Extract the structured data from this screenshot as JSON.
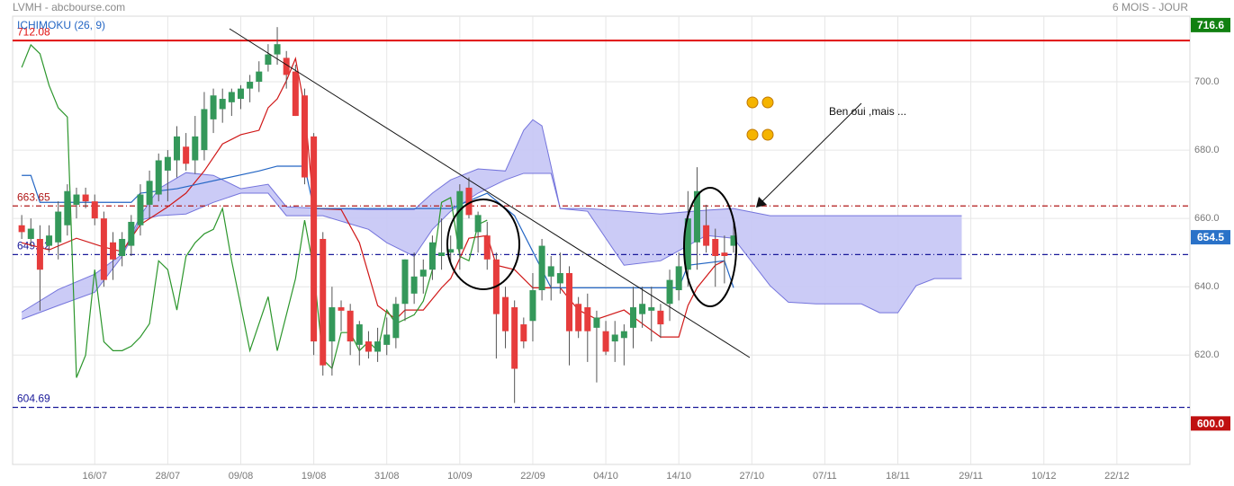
{
  "chart_data": {
    "type": "candlestick",
    "title": "LVMH - abcbourse.com",
    "subtitle": "6 MOIS - JOUR",
    "indicator": "ICHIMOKU (26, 9)",
    "annotation": "Ben oui ,mais ...",
    "up_color": "#34985a",
    "down_color": "#e63c3c",
    "x": [
      0,
      1,
      2,
      3,
      4,
      5,
      6,
      7,
      8,
      9,
      10,
      11,
      12,
      13,
      14,
      15,
      16,
      17,
      18,
      19,
      20,
      21,
      22,
      23,
      24,
      25,
      26,
      27,
      28,
      29,
      30,
      31,
      32,
      33,
      34,
      35,
      36,
      37,
      38,
      39,
      40,
      41,
      42,
      43,
      44,
      45,
      46,
      47,
      48,
      49,
      50,
      51,
      52,
      53,
      54,
      55,
      56,
      57,
      58,
      59,
      60,
      61,
      62,
      63,
      64,
      65,
      66,
      67,
      68,
      69,
      70,
      71,
      72,
      73,
      74,
      75,
      76,
      77,
      78
    ],
    "open": [
      658,
      654,
      654,
      652,
      653,
      658,
      664,
      667,
      665,
      660,
      653,
      649,
      652,
      658,
      664,
      667,
      674,
      677,
      681,
      677,
      680,
      689,
      692,
      694,
      695,
      698,
      700,
      705,
      708,
      707,
      703,
      696,
      684,
      654,
      624,
      634,
      633,
      623,
      624,
      621,
      623,
      625,
      635,
      638,
      643,
      645,
      649,
      650,
      651,
      669,
      656,
      655,
      648,
      637,
      634,
      629,
      630,
      639,
      643,
      641,
      644,
      635,
      634,
      628,
      627,
      624,
      625,
      628,
      632,
      633,
      633,
      635,
      639,
      645,
      653,
      658,
      654,
      650,
      652
    ],
    "high": [
      661,
      660,
      658,
      658,
      665,
      670,
      669,
      669,
      667,
      662,
      656,
      656,
      661,
      670,
      674,
      679,
      680,
      687,
      685,
      690,
      697,
      698,
      698,
      698,
      699,
      702,
      706,
      711,
      716,
      709,
      705,
      698,
      685,
      656,
      640,
      636,
      635,
      630,
      627,
      628,
      631,
      637,
      648,
      650,
      648,
      655,
      660,
      655,
      670,
      672,
      662,
      659,
      650,
      640,
      636,
      631,
      644,
      654,
      649,
      650,
      646,
      637,
      638,
      633,
      630,
      630,
      629,
      640,
      640,
      640,
      635,
      645,
      650,
      668,
      675,
      664,
      657,
      655,
      659
    ],
    "low": [
      654,
      652,
      633,
      650,
      648,
      655,
      660,
      663,
      658,
      640,
      642,
      646,
      649,
      655,
      660,
      665,
      665,
      672,
      674,
      673,
      677,
      685,
      688,
      690,
      692,
      694,
      697,
      703,
      705,
      698,
      690,
      670,
      620,
      614,
      614,
      627,
      620,
      617,
      619,
      618,
      620,
      622,
      630,
      635,
      638,
      642,
      645,
      647,
      645,
      660,
      650,
      645,
      619,
      622,
      606,
      622,
      624,
      636,
      636,
      638,
      617,
      625,
      618,
      612,
      620,
      618,
      617,
      622,
      628,
      624,
      625,
      630,
      636,
      640,
      645,
      650,
      640,
      641,
      650
    ],
    "close": [
      656,
      657,
      645,
      655,
      662,
      668,
      667,
      665,
      660,
      642,
      648,
      654,
      659,
      667,
      671,
      677,
      678,
      684,
      676,
      684,
      692,
      696,
      695,
      697,
      698,
      700,
      703,
      708,
      711,
      702,
      690,
      672,
      624,
      617,
      634,
      633,
      624,
      629,
      621,
      624,
      626,
      635,
      648,
      643,
      645,
      653,
      650,
      651,
      668,
      661,
      661,
      648,
      632,
      627,
      616,
      624,
      639,
      652,
      646,
      644,
      627,
      627,
      627,
      631,
      621,
      626,
      627,
      634,
      635,
      634,
      629,
      642,
      646,
      660,
      668,
      652,
      649,
      649,
      655
    ],
    "cloud": {
      "fill": "#c5c5f5",
      "edge": "#7474dc",
      "x": [
        0,
        4,
        8,
        11,
        13,
        15,
        18,
        21,
        24,
        27,
        29,
        33,
        38,
        40,
        43,
        45,
        47,
        50,
        53,
        55,
        56,
        57,
        58,
        59,
        62,
        66,
        70,
        75,
        78,
        82,
        84,
        87,
        92,
        94,
        96,
        98,
        100,
        103
      ],
      "upper": [
        632.6,
        639.2,
        643.7,
        649.5,
        660.8,
        668.7,
        673.4,
        672.6,
        668.7,
        670,
        663.4,
        662.9,
        662.6,
        662.6,
        662.6,
        667.4,
        671.3,
        674.5,
        673.9,
        685.8,
        688.9,
        687.1,
        675.3,
        662.9,
        662.9,
        662.1,
        661.3,
        662.4,
        662.9,
        660.8,
        660.8,
        660.8,
        660.8,
        660.8,
        660.8,
        660.8,
        660.8,
        660.8
      ],
      "lower": [
        630.5,
        634.5,
        638.4,
        648.9,
        659.5,
        660.8,
        661.3,
        664.7,
        667.4,
        667.4,
        660.8,
        660.8,
        656.8,
        652.9,
        648.9,
        656.8,
        662.1,
        667.4,
        671.3,
        673.2,
        673.2,
        673.2,
        673.2,
        662.9,
        662.1,
        646.3,
        647.6,
        655,
        654.2,
        640.3,
        635.5,
        635,
        635,
        632.4,
        632.4,
        640.3,
        642.4,
        642.4
      ]
    },
    "lines": [
      {
        "color": "#d01818",
        "x": [
          0,
          3,
          6,
          9,
          11,
          13,
          16,
          18,
          20,
          22,
          24,
          26,
          27,
          28,
          29,
          30,
          31,
          32,
          35,
          37,
          39,
          41,
          42,
          44,
          46,
          47,
          49,
          51,
          52,
          54,
          56,
          59,
          61,
          63,
          66,
          68,
          70,
          72,
          73,
          74,
          76,
          77
        ],
        "values": [
          652.9,
          650.8,
          654.2,
          651.6,
          650.3,
          658.2,
          663.4,
          667.4,
          673.9,
          681.8,
          684.5,
          685.8,
          692.4,
          695,
          700.3,
          706.8,
          692.4,
          662.9,
          662.6,
          652.9,
          634.5,
          630.5,
          633.2,
          633.2,
          639.7,
          642.4,
          654.2,
          655,
          646.3,
          645,
          639.7,
          639.7,
          633.2,
          630.5,
          633.2,
          629.2,
          625.3,
          625.3,
          634.5,
          639.7,
          646.3,
          647.6
        ]
      },
      {
        "color": "#2466c4",
        "x": [
          0,
          1,
          2,
          12,
          13,
          17,
          26,
          28,
          31,
          32,
          41,
          47,
          51,
          54,
          56,
          57,
          58,
          69,
          72,
          73,
          77,
          78
        ],
        "values": [
          672.6,
          672.6,
          664.7,
          664.7,
          667.4,
          668.7,
          673.9,
          675.3,
          675.3,
          662.9,
          662.9,
          662.9,
          667.4,
          660.8,
          650.3,
          645,
          639.7,
          639.7,
          639.7,
          646.3,
          647.6,
          639.7
        ]
      },
      {
        "color": "#2c962c",
        "x": [
          0,
          1,
          2,
          3,
          4,
          5,
          6,
          7,
          8,
          9,
          10,
          11,
          12,
          13,
          14,
          15,
          16,
          17,
          18,
          19,
          20,
          21,
          22,
          23,
          24,
          25,
          26,
          27,
          28,
          29,
          30,
          31,
          32,
          33,
          34,
          35,
          36,
          37,
          38,
          39,
          40,
          41,
          42,
          43,
          44,
          45,
          46,
          47,
          48,
          49,
          50,
          51
        ],
        "values": [
          704.2,
          710.8,
          708.2,
          698.9,
          692.4,
          689.7,
          613.4,
          620,
          645,
          623.9,
          621.3,
          621.3,
          622.6,
          625.3,
          629.2,
          647.6,
          645,
          633.2,
          648.9,
          652.9,
          655.5,
          656.8,
          662.9,
          647.6,
          634.5,
          621.3,
          629.2,
          637.1,
          621.3,
          631.8,
          642.4,
          659.5,
          645,
          618.7,
          616.1,
          626.6,
          626.6,
          621.3,
          623.9,
          621.3,
          633.2,
          629.2,
          630.5,
          631.8,
          635.8,
          645,
          664.7,
          666.1,
          648.9,
          647.6,
          658.2,
          659.5
        ]
      }
    ],
    "levels": [
      {
        "value": 712.08,
        "color": "#e01010",
        "dash": "none"
      },
      {
        "value": 663.65,
        "color": "#b01818",
        "dash": "6 3 1 3"
      },
      {
        "value": 649.42,
        "color": "#1a1a9a",
        "dash": "6 3 1 3"
      },
      {
        "value": 604.69,
        "color": "#1a1a9a",
        "dash": "6 3"
      }
    ],
    "markers": [
      {
        "value": 716.6,
        "color": "#118011"
      },
      {
        "value": 654.5,
        "color": "#2a72c8"
      },
      {
        "value": 600,
        "label": "600.0",
        "color": "#c01010"
      }
    ],
    "xlim": [
      -1,
      128
    ],
    "ylim": [
      588,
      719.2
    ],
    "xticks": [
      {
        "value": 8,
        "label": "16/07"
      },
      {
        "value": 16,
        "label": "28/07"
      },
      {
        "value": 24,
        "label": "09/08"
      },
      {
        "value": 32,
        "label": "19/08"
      },
      {
        "value": 40,
        "label": "31/08"
      },
      {
        "value": 48,
        "label": "10/09"
      },
      {
        "value": 56,
        "label": "22/09"
      },
      {
        "value": 64,
        "label": "04/10"
      },
      {
        "value": 72,
        "label": "14/10"
      },
      {
        "value": 80,
        "label": "27/10"
      },
      {
        "value": 88,
        "label": "07/11"
      },
      {
        "value": 96,
        "label": "18/11"
      },
      {
        "value": 104,
        "label": "29/11"
      },
      {
        "value": 112,
        "label": "10/12"
      },
      {
        "value": 120,
        "label": "22/12"
      }
    ],
    "yticks": [
      {
        "value": 620,
        "label": "620.0"
      },
      {
        "value": 640,
        "label": "640.0"
      },
      {
        "value": 660,
        "label": "660.0"
      },
      {
        "value": 680,
        "label": "680.0"
      },
      {
        "value": 700,
        "label": "700.0"
      }
    ],
    "grid": true
  }
}
